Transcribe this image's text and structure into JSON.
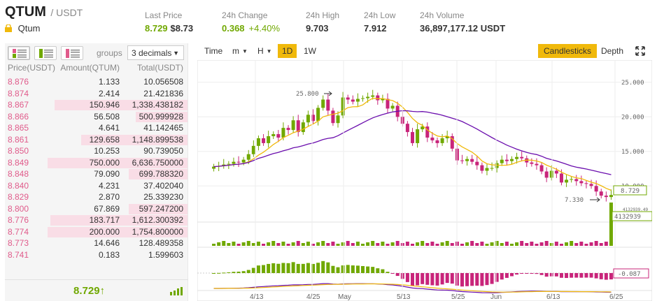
{
  "header": {
    "symbol": "QTUM",
    "quote": "/ USDT",
    "coin_name": "Qtum",
    "stats": {
      "last_price": {
        "label": "Last Price",
        "value": "8.729",
        "fiat": "$8.73"
      },
      "change_24h": {
        "label": "24h Change",
        "value": "0.368",
        "percent": "+4.40%"
      },
      "high_24h": {
        "label": "24h High",
        "value": "9.703"
      },
      "low_24h": {
        "label": "24h Low",
        "value": "7.912"
      },
      "volume_24h": {
        "label": "24h Volume",
        "value": "36,897,177.12 USDT"
      }
    }
  },
  "orderbook": {
    "groups_label": "groups",
    "groups_value": "3 decimals",
    "columns": [
      "Price(USDT)",
      "Amount(QTUM)",
      "Total(USDT)"
    ],
    "rows": [
      {
        "price": "8.876",
        "amount": "1.133",
        "total": "10.056508",
        "depth": 0
      },
      {
        "price": "8.874",
        "amount": "2.414",
        "total": "21.421836",
        "depth": 0
      },
      {
        "price": "8.867",
        "amount": "150.946",
        "total": "1,338.438182",
        "depth": 0.95
      },
      {
        "price": "8.866",
        "amount": "56.508",
        "total": "500.999928",
        "depth": 0.37
      },
      {
        "price": "8.865",
        "amount": "4.641",
        "total": "41.142465",
        "depth": 0
      },
      {
        "price": "8.861",
        "amount": "129.658",
        "total": "1,148.899538",
        "depth": 0.76
      },
      {
        "price": "8.850",
        "amount": "10.253",
        "total": "90.739050",
        "depth": 0
      },
      {
        "price": "8.849",
        "amount": "750.000",
        "total": "6,636.750000",
        "depth": 1.0
      },
      {
        "price": "8.848",
        "amount": "79.090",
        "total": "699.788320",
        "depth": 0.42
      },
      {
        "price": "8.840",
        "amount": "4.231",
        "total": "37.402040",
        "depth": 0
      },
      {
        "price": "8.829",
        "amount": "2.870",
        "total": "25.339230",
        "depth": 0
      },
      {
        "price": "8.800",
        "amount": "67.869",
        "total": "597.247200",
        "depth": 0.42
      },
      {
        "price": "8.776",
        "amount": "183.717",
        "total": "1,612.300392",
        "depth": 0.98
      },
      {
        "price": "8.774",
        "amount": "200.000",
        "total": "1,754.800000",
        "depth": 1.0
      },
      {
        "price": "8.773",
        "amount": "14.646",
        "total": "128.489358",
        "depth": 0
      },
      {
        "price": "8.741",
        "amount": "0.183",
        "total": "1.599603",
        "depth": 0
      }
    ],
    "last_price": "8.729",
    "trend_arrow": "↑"
  },
  "chart": {
    "toolbar": {
      "time": "Time",
      "minute": "m",
      "hour": "H",
      "day": "1D",
      "week": "1W",
      "candlesticks": "Candlesticks",
      "depth": "Depth"
    },
    "price_axis": [
      "25.000",
      "20.000",
      "15.000",
      "10.000"
    ],
    "current_price_tag": "8.729",
    "high_annotation": "25.800",
    "low_annotation": "7.330",
    "volume_tag": "4132939",
    "volume_tag_small": "4132939.49",
    "macd_tag": "-0.087",
    "date_labels": [
      "4/13",
      "4/25",
      "May",
      "5/13",
      "5/25",
      "Jun",
      "6/13",
      "6/25"
    ],
    "colors": {
      "up": "#70a800",
      "down": "#c8247a",
      "ma_short": "#f0b90b",
      "ma_long": "#6a0dad",
      "accent": "#f0b90b"
    }
  },
  "chart_data": {
    "type": "candlestick",
    "ylim": [
      7,
      27
    ],
    "candles_close": [
      12.8,
      12.9,
      13.1,
      13.2,
      13.5,
      13.4,
      13.8,
      14.6,
      15.8,
      16.9,
      16.2,
      17.2,
      17.5,
      17.0,
      18.4,
      18.1,
      19.5,
      17.8,
      19.2,
      20.3,
      19.4,
      21.3,
      22.5,
      20.9,
      19.1,
      20.2,
      22.8,
      22.5,
      22.2,
      22.6,
      22.7,
      22.9,
      23.1,
      22.4,
      22.6,
      21.2,
      21.6,
      20.0,
      19.0,
      17.8,
      16.2,
      18.2,
      18.6,
      17.0,
      16.6,
      16.2,
      16.9,
      17.2,
      15.4,
      13.7,
      13.6,
      13.9,
      13.5,
      13.0,
      12.2,
      12.6,
      12.6,
      13.3,
      13.8,
      13.6,
      13.9,
      14.2,
      14.0,
      13.4,
      13.2,
      13.0,
      12.1,
      11.2,
      12.2,
      11.8,
      10.5,
      10.9,
      11.0,
      10.7,
      10.4,
      10.3,
      10.0,
      9.2,
      8.6,
      8.4,
      8.7
    ]
  }
}
